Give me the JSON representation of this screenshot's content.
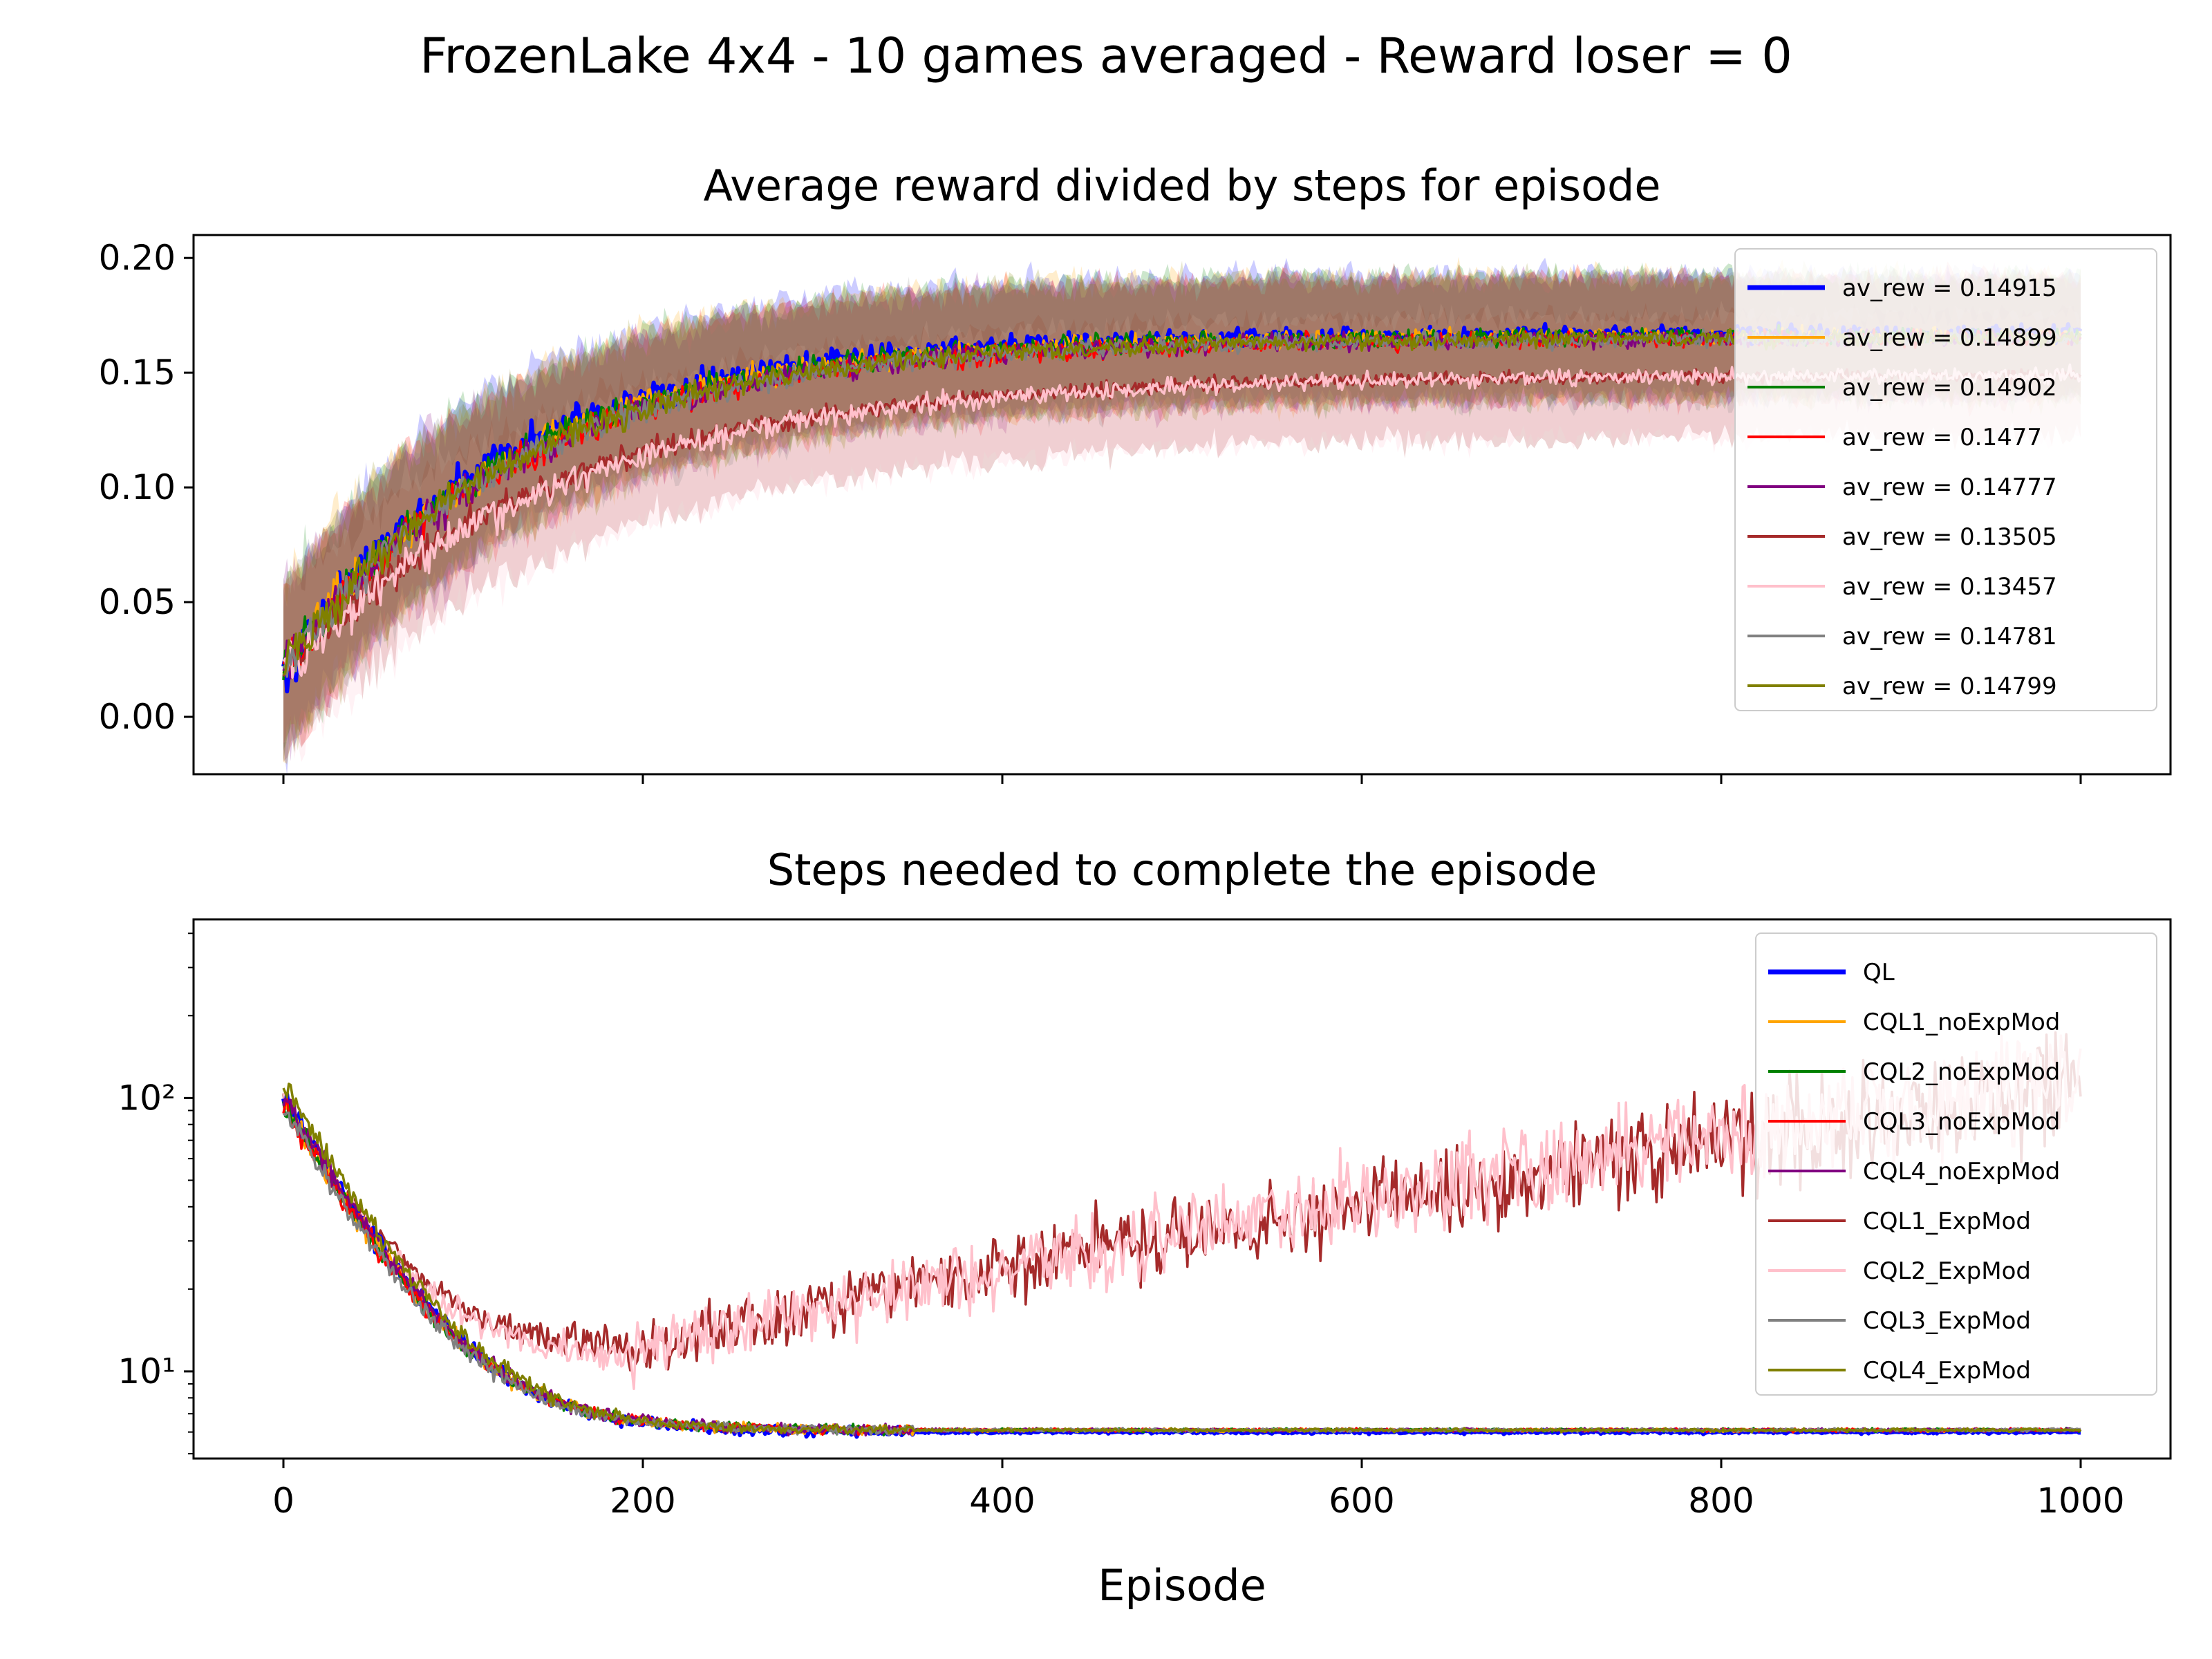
{
  "figure_title": "FrozenLake 4x4 - 10 games averaged - Reward loser = 0",
  "chart_data": [
    {
      "type": "line",
      "title": "Average reward divided by steps for episode",
      "xlabel": "",
      "ylabel": "",
      "xlim": [
        -50,
        1050
      ],
      "ylim": [
        -0.025,
        0.21
      ],
      "yticks": [
        0.0,
        0.05,
        0.1,
        0.15,
        0.2
      ],
      "ytick_labels": [
        "0.00",
        "0.05",
        "0.10",
        "0.15",
        "0.20"
      ],
      "xticks": [
        0,
        200,
        400,
        600,
        800,
        1000
      ],
      "show_x_ticklabels": false,
      "grid": false,
      "legend_placement": "upper right",
      "band": "shaded spread around each series mean",
      "series": [
        {
          "name": "av_rew = 0.14915",
          "color": "#0000ff",
          "bold": true,
          "start": 0.02,
          "plateau": 0.167,
          "tau": 120,
          "noise": 0.005
        },
        {
          "name": "av_rew = 0.14899",
          "color": "#ffa500",
          "start": 0.02,
          "plateau": 0.166,
          "tau": 125,
          "noise": 0.005
        },
        {
          "name": "av_rew = 0.14902",
          "color": "#008000",
          "start": 0.02,
          "plateau": 0.166,
          "tau": 125,
          "noise": 0.005
        },
        {
          "name": "av_rew = 0.1477",
          "color": "#ff0000",
          "start": 0.02,
          "plateau": 0.165,
          "tau": 130,
          "noise": 0.005
        },
        {
          "name": "av_rew = 0.14777",
          "color": "#800080",
          "start": 0.02,
          "plateau": 0.165,
          "tau": 130,
          "noise": 0.005
        },
        {
          "name": "av_rew = 0.13505",
          "color": "#a52a2a",
          "start": 0.02,
          "plateau": 0.149,
          "tau": 150,
          "noise": 0.004
        },
        {
          "name": "av_rew = 0.13457",
          "color": "#ffc0cb",
          "start": 0.02,
          "plateau": 0.149,
          "tau": 155,
          "noise": 0.005
        },
        {
          "name": "av_rew = 0.14781",
          "color": "#808080",
          "start": 0.02,
          "plateau": 0.165,
          "tau": 130,
          "noise": 0.005
        },
        {
          "name": "av_rew = 0.14799",
          "color": "#808000",
          "start": 0.02,
          "plateau": 0.165,
          "tau": 128,
          "noise": 0.005
        }
      ]
    },
    {
      "type": "line",
      "title": "Steps needed to complete the episode",
      "xlabel": "Episode",
      "ylabel": "",
      "xlim": [
        -50,
        1050
      ],
      "ylim": [
        4.8,
        450
      ],
      "yscale": "log",
      "yticks": [
        10,
        100
      ],
      "ytick_labels": [
        "10¹",
        "10²"
      ],
      "xticks": [
        0,
        200,
        400,
        600,
        800,
        1000
      ],
      "xtick_labels": [
        "0",
        "200",
        "400",
        "600",
        "800",
        "1000"
      ],
      "grid": false,
      "legend_placement": "upper right",
      "series": [
        {
          "name": "QL",
          "color": "#0000ff",
          "bold": true,
          "profile": "converge",
          "start": 100,
          "final": 6.0
        },
        {
          "name": "CQL1_noExpMod",
          "color": "#ffa500",
          "profile": "converge",
          "start": 95,
          "final": 6.1
        },
        {
          "name": "CQL2_noExpMod",
          "color": "#008000",
          "profile": "converge",
          "start": 95,
          "final": 6.1
        },
        {
          "name": "CQL3_noExpMod",
          "color": "#ff0000",
          "profile": "converge",
          "start": 95,
          "final": 6.1
        },
        {
          "name": "CQL4_noExpMod",
          "color": "#800080",
          "profile": "converge",
          "start": 100,
          "final": 6.1
        },
        {
          "name": "CQL1_ExpMod",
          "color": "#a52a2a",
          "profile": "diverge",
          "start": 100,
          "min_at": 200,
          "min": 12,
          "end": 110
        },
        {
          "name": "CQL2_ExpMod",
          "color": "#ffc0cb",
          "profile": "diverge",
          "start": 100,
          "min_at": 190,
          "min": 11,
          "end": 120
        },
        {
          "name": "CQL3_ExpMod",
          "color": "#808080",
          "profile": "converge",
          "start": 90,
          "final": 6.1
        },
        {
          "name": "CQL4_ExpMod",
          "color": "#808000",
          "profile": "converge",
          "start": 110,
          "final": 6.1
        }
      ]
    }
  ]
}
